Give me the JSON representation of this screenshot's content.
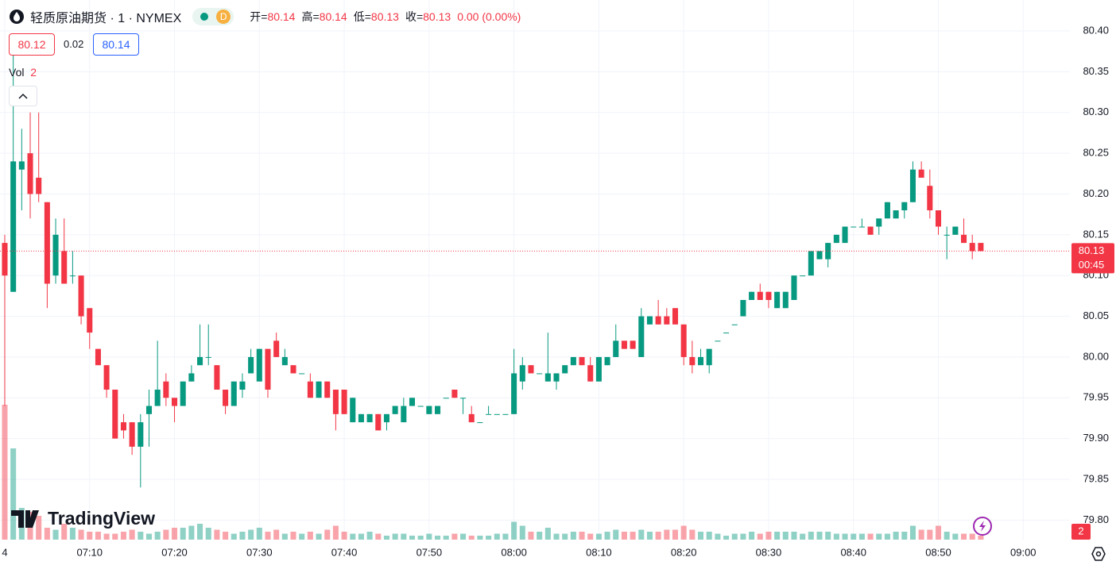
{
  "header": {
    "title": "轻质原油期货 · 1 · NYMEX",
    "badge": "D",
    "ohlc_labels": [
      "开=",
      "高=",
      "低=",
      "收="
    ],
    "change": "0.00 (0.00%)"
  },
  "quote": {
    "bid": "80.12",
    "spread": "0.02",
    "ask": "80.14"
  },
  "volume_label": "Vol",
  "watermark": "TradingView",
  "chart_data": {
    "type": "candlestick",
    "x": [
      0,
      1,
      2,
      3,
      4,
      5,
      6,
      7,
      8,
      9,
      10,
      11,
      12,
      13,
      14,
      15,
      16,
      17,
      18,
      19,
      20,
      21,
      22,
      23,
      24,
      25,
      26,
      27,
      28,
      29,
      30,
      31,
      32,
      33,
      34,
      35,
      36,
      37,
      38,
      39,
      40,
      41,
      42,
      43,
      44,
      45,
      46,
      47,
      48,
      49,
      50,
      51,
      52,
      53,
      54,
      55,
      56,
      57,
      58,
      59,
      60,
      61,
      62,
      63,
      64,
      65,
      66,
      67,
      68,
      69,
      70,
      71,
      72,
      73,
      74,
      75,
      76,
      77,
      78,
      79,
      80,
      81,
      82,
      83,
      84,
      85,
      86,
      87,
      88,
      89,
      90,
      91,
      92,
      93,
      94,
      95,
      96,
      97,
      98,
      99,
      100,
      101,
      102,
      103,
      104,
      105,
      106,
      107,
      108,
      109,
      110,
      111,
      112,
      113,
      114,
      115
    ],
    "open": [
      80.14,
      80.08,
      80.23,
      80.25,
      80.22,
      80.19,
      80.1,
      80.13,
      80.1,
      80.1,
      80.06,
      80.01,
      79.99,
      79.96,
      79.92,
      79.92,
      79.89,
      79.93,
      79.94,
      79.97,
      79.95,
      79.94,
      79.97,
      79.99,
      80.0,
      79.99,
      79.96,
      79.94,
      79.96,
      79.98,
      79.97,
      80.01,
      80.02,
      79.99,
      79.99,
      79.98,
      79.97,
      79.95,
      79.97,
      79.96,
      79.96,
      79.92,
      79.92,
      79.92,
      79.93,
      79.92,
      79.93,
      79.92,
      79.94,
      79.94,
      79.93,
      79.93,
      79.95,
      79.96,
      79.95,
      79.93,
      79.92,
      79.93,
      79.93,
      79.93,
      79.93,
      79.97,
      79.99,
      79.98,
      79.97,
      79.97,
      79.98,
      79.99,
      80.0,
      79.99,
      79.97,
      79.99,
      80.0,
      80.02,
      80.02,
      80.0,
      80.04,
      80.05,
      80.05,
      80.06,
      80.04,
      80.0,
      79.99,
      79.99,
      80.02,
      80.03,
      80.04,
      80.05,
      80.07,
      80.08,
      80.08,
      80.06,
      80.06,
      80.07,
      80.1,
      80.1,
      80.12,
      80.12,
      80.14,
      80.14,
      80.16,
      80.16,
      80.16,
      80.16,
      80.17,
      80.17,
      80.18,
      80.19,
      80.23,
      80.21,
      80.18,
      80.15,
      80.15,
      80.15,
      80.14,
      80.14
    ],
    "high": [
      80.15,
      80.37,
      80.28,
      80.3,
      80.3,
      80.19,
      80.17,
      80.17,
      80.13,
      80.1,
      80.06,
      80.01,
      79.99,
      79.96,
      79.93,
      79.92,
      79.93,
      79.96,
      80.02,
      79.98,
      79.95,
      79.97,
      79.99,
      80.04,
      80.04,
      79.99,
      79.96,
      79.97,
      79.98,
      80.01,
      80.01,
      80.01,
      80.03,
      80.01,
      79.99,
      79.98,
      79.98,
      79.97,
      79.97,
      79.96,
      79.96,
      79.95,
      79.93,
      79.93,
      79.93,
      79.93,
      79.94,
      79.95,
      79.95,
      79.94,
      79.94,
      79.94,
      79.95,
      79.96,
      79.95,
      79.94,
      79.92,
      79.94,
      79.93,
      79.93,
      80.01,
      80.0,
      79.99,
      79.98,
      80.03,
      79.98,
      79.99,
      80.0,
      80.0,
      80.0,
      80.0,
      80.0,
      80.04,
      80.02,
      80.02,
      80.06,
      80.05,
      80.07,
      80.06,
      80.06,
      80.04,
      80.02,
      80.01,
      80.01,
      80.02,
      80.03,
      80.04,
      80.07,
      80.08,
      80.09,
      80.08,
      80.08,
      80.08,
      80.1,
      80.1,
      80.13,
      80.13,
      80.14,
      80.15,
      80.16,
      80.16,
      80.17,
      80.16,
      80.17,
      80.19,
      80.18,
      80.19,
      80.24,
      80.24,
      80.23,
      80.18,
      80.16,
      80.16,
      80.17,
      80.15,
      80.14
    ],
    "low": [
      79.94,
      80.08,
      80.18,
      80.17,
      80.19,
      80.06,
      80.09,
      80.09,
      80.09,
      80.04,
      80.01,
      79.99,
      79.95,
      79.9,
      79.9,
      79.88,
      79.84,
      79.89,
      79.94,
      79.94,
      79.92,
      79.94,
      79.97,
      79.99,
      79.99,
      79.96,
      79.93,
      79.94,
      79.95,
      79.98,
      79.97,
      79.95,
      80.0,
      79.99,
      79.98,
      79.98,
      79.95,
      79.95,
      79.95,
      79.91,
      79.93,
      79.92,
      79.92,
      79.92,
      79.91,
      79.91,
      79.93,
      79.92,
      79.94,
      79.94,
      79.93,
      79.93,
      79.95,
      79.95,
      79.93,
      79.92,
      79.92,
      79.93,
      79.93,
      79.93,
      79.93,
      79.96,
      79.98,
      79.98,
      79.97,
      79.96,
      79.98,
      79.99,
      79.99,
      79.97,
      79.97,
      79.99,
      80.0,
      80.01,
      80.01,
      80.0,
      80.04,
      80.04,
      80.04,
      80.04,
      79.99,
      79.98,
      79.99,
      79.98,
      80.02,
      80.03,
      80.04,
      80.05,
      80.07,
      80.07,
      80.06,
      80.06,
      80.06,
      80.07,
      80.1,
      80.1,
      80.12,
      80.11,
      80.14,
      80.14,
      80.16,
      80.16,
      80.15,
      80.15,
      80.17,
      80.17,
      80.17,
      80.19,
      80.22,
      80.17,
      80.15,
      80.12,
      80.15,
      80.14,
      80.12,
      80.13
    ],
    "close": [
      80.1,
      80.24,
      80.24,
      80.2,
      80.2,
      80.09,
      80.15,
      80.09,
      80.1,
      80.05,
      80.03,
      79.99,
      79.96,
      79.9,
      79.91,
      79.89,
      79.92,
      79.94,
      79.96,
      79.95,
      79.94,
      79.97,
      79.98,
      80.0,
      80.0,
      79.96,
      79.94,
      79.97,
      79.97,
      80.0,
      80.01,
      79.96,
      80.0,
      80.0,
      79.98,
      79.98,
      79.95,
      79.97,
      79.95,
      79.93,
      79.93,
      79.95,
      79.93,
      79.93,
      79.91,
      79.93,
      79.94,
      79.94,
      79.95,
      79.94,
      79.94,
      79.94,
      79.95,
      79.95,
      79.95,
      79.92,
      79.92,
      79.93,
      79.93,
      79.93,
      79.98,
      79.99,
      79.98,
      79.98,
      79.98,
      79.98,
      79.99,
      80.0,
      79.99,
      79.97,
      80.0,
      80.0,
      80.02,
      80.01,
      80.01,
      80.05,
      80.05,
      80.04,
      80.04,
      80.04,
      80.0,
      79.99,
      80.0,
      80.01,
      80.02,
      80.03,
      80.04,
      80.07,
      80.08,
      80.07,
      80.07,
      80.08,
      80.08,
      80.1,
      80.1,
      80.13,
      80.13,
      80.14,
      80.15,
      80.16,
      80.16,
      80.16,
      80.15,
      80.17,
      80.19,
      80.18,
      80.19,
      80.23,
      80.22,
      80.18,
      80.16,
      80.15,
      80.16,
      80.14,
      80.13,
      80.13
    ],
    "volume": [
      68,
      46,
      16,
      14,
      12,
      6,
      5,
      8,
      6,
      5,
      4,
      4,
      3,
      3,
      4,
      5,
      4,
      3,
      4,
      5,
      6,
      6,
      7,
      8,
      6,
      5,
      4,
      3,
      4,
      5,
      6,
      4,
      5,
      3,
      4,
      3,
      4,
      3,
      5,
      7,
      4,
      3,
      3,
      4,
      3,
      2,
      3,
      3,
      2,
      2,
      3,
      2,
      2,
      3,
      3,
      2,
      2,
      2,
      3,
      3,
      9,
      7,
      4,
      4,
      6,
      3,
      3,
      4,
      4,
      3,
      3,
      4,
      5,
      4,
      4,
      5,
      4,
      4,
      5,
      5,
      7,
      5,
      4,
      4,
      3,
      2,
      3,
      3,
      4,
      3,
      4,
      4,
      4,
      4,
      3,
      4,
      4,
      4,
      3,
      3,
      3,
      3,
      3,
      3,
      3,
      4,
      4,
      7,
      5,
      5,
      7,
      4,
      3,
      3,
      3,
      2
    ],
    "up_color": "#089981",
    "down_color": "#f23645",
    "xlim": [
      -0.56,
      125.5
    ],
    "ylim": [
      79.776,
      80.438
    ],
    "xticks": [
      {
        "value": 0,
        "label": "4"
      },
      {
        "value": 10,
        "label": "07:10"
      },
      {
        "value": 20,
        "label": "07:20"
      },
      {
        "value": 30,
        "label": "07:30"
      },
      {
        "value": 40,
        "label": "07:40"
      },
      {
        "value": 50,
        "label": "07:50"
      },
      {
        "value": 60,
        "label": "08:00"
      },
      {
        "value": 70,
        "label": "08:10"
      },
      {
        "value": 80,
        "label": "08:20"
      },
      {
        "value": 90,
        "label": "08:30"
      },
      {
        "value": 100,
        "label": "08:40"
      },
      {
        "value": 110,
        "label": "08:50"
      },
      {
        "value": 120,
        "label": "09:00"
      }
    ],
    "yticks": [
      {
        "value": 79.8,
        "label": "79.80"
      },
      {
        "value": 79.85,
        "label": "79.85"
      },
      {
        "value": 79.9,
        "label": "79.90"
      },
      {
        "value": 79.95,
        "label": "79.95"
      },
      {
        "value": 80,
        "label": "80.00"
      },
      {
        "value": 80.05,
        "label": "80.05"
      },
      {
        "value": 80.1,
        "label": "80.10"
      },
      {
        "value": 80.15,
        "label": "80.15"
      },
      {
        "value": 80.2,
        "label": "80.20"
      },
      {
        "value": 80.25,
        "label": "80.25"
      },
      {
        "value": 80.3,
        "label": "80.30"
      },
      {
        "value": 80.35,
        "label": "80.35"
      },
      {
        "value": 80.4,
        "label": "80.40"
      }
    ],
    "grid": true,
    "countdown": "00:45"
  }
}
